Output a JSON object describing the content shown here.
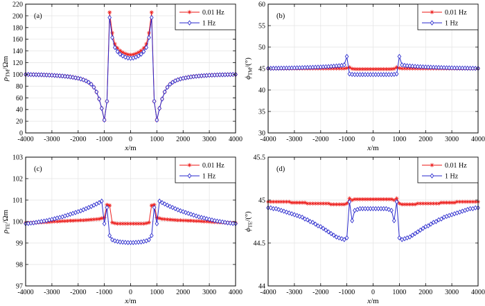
{
  "figure": {
    "background": "#ffffff",
    "axis_color": "#000000",
    "grid_color": "#e3e3e3",
    "series_colors": {
      "freq_001hz": "#ed2220",
      "freq_1hz": "#2727cc"
    },
    "legend_labels": [
      "0.01 Hz",
      "1 Hz"
    ]
  },
  "chart_data": [
    {
      "type": "line",
      "panel_label": "(a)",
      "xlabel": {
        "variable": "x",
        "unit": "/m"
      },
      "ylabel": {
        "variable": "ρ",
        "subscript": "TM",
        "unit": "/Ωm"
      },
      "xlim": [
        -4000,
        4000
      ],
      "ylim": [
        0,
        220
      ],
      "xticks": [
        -4000,
        -3000,
        -2000,
        -1000,
        0,
        1000,
        2000,
        3000,
        4000
      ],
      "yticks": [
        0,
        20,
        40,
        60,
        80,
        100,
        120,
        140,
        160,
        180,
        200,
        220
      ],
      "grid": true,
      "legend_position": "top-right",
      "x_start": -4000,
      "x_step": 100,
      "series": [
        {
          "name": "0.01 Hz",
          "marker": "asterisk",
          "color": "#ed2220",
          "values": [
            99.9,
            99.8,
            99.7,
            99.6,
            99.5,
            99.4,
            99.3,
            99.1,
            98.9,
            98.7,
            98.5,
            98.2,
            97.9,
            97.6,
            97.2,
            96.8,
            96.3,
            95.7,
            95,
            94.2,
            93.3,
            92.2,
            90.8,
            89,
            86.5,
            83,
            78,
            70,
            58,
            42,
            22,
            54,
            206,
            171,
            152,
            145,
            140.5,
            137.5,
            135.5,
            134,
            133.5,
            134,
            135.5,
            137.5,
            140.5,
            145,
            152,
            171,
            206,
            54,
            22,
            42,
            58,
            70,
            78,
            83,
            86.5,
            89,
            90.8,
            92.2,
            93.3,
            94.2,
            95,
            95.7,
            96.3,
            96.8,
            97.2,
            97.6,
            97.9,
            98.2,
            98.5,
            98.7,
            98.9,
            99.1,
            99.3,
            99.4,
            99.5,
            99.6,
            99.7,
            99.8,
            99.9
          ]
        },
        {
          "name": "1 Hz",
          "marker": "diamond",
          "color": "#2727cc",
          "values": [
            99.9,
            99.8,
            99.7,
            99.6,
            99.5,
            99.4,
            99.3,
            99.1,
            98.9,
            98.7,
            98.5,
            98.2,
            97.9,
            97.6,
            97.2,
            96.8,
            96.3,
            95.7,
            95,
            94.2,
            93.3,
            92.2,
            90.8,
            89,
            86.5,
            83,
            78,
            70,
            58,
            42,
            22,
            54,
            197,
            163,
            146,
            139,
            134.5,
            131.5,
            129.5,
            128,
            127.5,
            128,
            129.5,
            131.5,
            134.5,
            139,
            146,
            163,
            197,
            54,
            22,
            42,
            58,
            70,
            78,
            83,
            86.5,
            89,
            90.8,
            92.2,
            93.3,
            94.2,
            95,
            95.7,
            96.3,
            96.8,
            97.2,
            97.6,
            97.9,
            98.2,
            98.5,
            98.7,
            98.9,
            99.1,
            99.3,
            99.4,
            99.5,
            99.6,
            99.7,
            99.8,
            99.9
          ]
        }
      ]
    },
    {
      "type": "line",
      "panel_label": "(b)",
      "xlabel": {
        "variable": "x",
        "unit": "/m"
      },
      "ylabel": {
        "variable": "ϕ",
        "subscript": "TM",
        "unit": "/(°)"
      },
      "xlim": [
        -4000,
        4000
      ],
      "ylim": [
        30,
        60
      ],
      "xticks": [
        -4000,
        -3000,
        -2000,
        -1000,
        0,
        1000,
        2000,
        3000,
        4000
      ],
      "yticks": [
        30,
        35,
        40,
        45,
        50,
        55,
        60
      ],
      "grid": true,
      "legend_position": "top-right",
      "x_start": -4000,
      "x_step": 100,
      "series": [
        {
          "name": "0.01 Hz",
          "marker": "asterisk",
          "color": "#ed2220",
          "values": [
            45,
            45,
            45,
            45,
            45,
            45,
            45,
            45,
            45,
            45,
            45,
            45,
            45,
            45,
            45,
            45,
            45,
            45,
            45,
            45,
            45,
            45,
            45,
            45,
            45,
            45,
            45,
            45,
            45,
            45,
            45.1,
            45.3,
            44.95,
            44.88,
            44.87,
            44.87,
            44.87,
            44.87,
            44.87,
            44.87,
            44.87,
            44.87,
            44.87,
            44.87,
            44.87,
            44.87,
            44.87,
            44.88,
            44.95,
            45.3,
            45.1,
            45,
            45,
            45,
            45,
            45,
            45,
            45,
            45,
            45,
            45,
            45,
            45,
            45,
            45,
            45,
            45,
            45,
            45,
            45,
            45,
            45,
            45,
            45,
            45,
            45,
            45,
            45,
            45,
            45,
            45
          ]
        },
        {
          "name": "1 Hz",
          "marker": "diamond",
          "color": "#2727cc",
          "values": [
            45.05,
            45.05,
            45.06,
            45.07,
            45.08,
            45.09,
            45.1,
            45.11,
            45.12,
            45.13,
            45.15,
            45.16,
            45.18,
            45.2,
            45.22,
            45.24,
            45.26,
            45.28,
            45.3,
            45.32,
            45.35,
            45.38,
            45.42,
            45.45,
            45.5,
            45.55,
            45.6,
            45.65,
            45.72,
            45.85,
            47.8,
            43.75,
            43.65,
            43.6,
            43.6,
            43.6,
            43.6,
            43.6,
            43.6,
            43.6,
            43.6,
            43.6,
            43.6,
            43.6,
            43.6,
            43.6,
            43.6,
            43.6,
            43.65,
            43.75,
            47.8,
            45.85,
            45.72,
            45.65,
            45.6,
            45.55,
            45.5,
            45.45,
            45.42,
            45.38,
            45.35,
            45.32,
            45.3,
            45.28,
            45.26,
            45.24,
            45.22,
            45.2,
            45.18,
            45.16,
            45.15,
            45.13,
            45.12,
            45.11,
            45.1,
            45.09,
            45.08,
            45.07,
            45.06,
            45.05,
            45.05
          ]
        }
      ]
    },
    {
      "type": "line",
      "panel_label": "(c)",
      "xlabel": {
        "variable": "x",
        "unit": "/m"
      },
      "ylabel": {
        "variable": "ρ",
        "subscript": "TE",
        "unit": "/Ωm"
      },
      "xlim": [
        -4000,
        4000
      ],
      "ylim": [
        97,
        103
      ],
      "xticks": [
        -4000,
        -3000,
        -2000,
        -1000,
        0,
        1000,
        2000,
        3000,
        4000
      ],
      "yticks": [
        97,
        98,
        99,
        100,
        101,
        102,
        103
      ],
      "grid": true,
      "legend_position": "top-right",
      "x_start": -4000,
      "x_step": 100,
      "series": [
        {
          "name": "0.01 Hz",
          "marker": "asterisk",
          "color": "#ed2220",
          "values": [
            99.93,
            99.94,
            99.94,
            99.95,
            99.95,
            99.96,
            99.96,
            99.97,
            99.97,
            99.98,
            99.99,
            100,
            100,
            100.01,
            100.02,
            100.02,
            100.03,
            100.04,
            100.04,
            100.05,
            100.05,
            100.06,
            100.06,
            100.07,
            100.08,
            100.09,
            100.1,
            100.11,
            100.12,
            100.15,
            100.18,
            100.78,
            100.75,
            99.95,
            99.92,
            99.9,
            99.9,
            99.9,
            99.9,
            99.9,
            99.9,
            99.9,
            99.9,
            99.9,
            99.9,
            99.9,
            99.92,
            99.95,
            100.75,
            100.78,
            100.18,
            100.15,
            100.12,
            100.11,
            100.1,
            100.09,
            100.08,
            100.07,
            100.06,
            100.06,
            100.05,
            100.05,
            100.04,
            100.04,
            100.03,
            100.02,
            100.02,
            100.01,
            100,
            100,
            99.99,
            99.98,
            99.97,
            99.97,
            99.96,
            99.96,
            99.95,
            99.95,
            99.94,
            99.94,
            99.93
          ]
        },
        {
          "name": "1 Hz",
          "marker": "diamond",
          "color": "#2727cc",
          "values": [
            99.9,
            99.91,
            99.93,
            99.94,
            99.96,
            99.98,
            100,
            100.02,
            100.04,
            100.07,
            100.1,
            100.13,
            100.16,
            100.19,
            100.22,
            100.26,
            100.3,
            100.34,
            100.38,
            100.42,
            100.46,
            100.5,
            100.55,
            100.6,
            100.65,
            100.7,
            100.76,
            100.82,
            100.88,
            100.95,
            99.9,
            100.65,
            99.35,
            99.15,
            99.1,
            99.07,
            99.05,
            99.04,
            99.03,
            99.02,
            99.02,
            99.02,
            99.03,
            99.04,
            99.05,
            99.07,
            99.1,
            99.15,
            99.35,
            100.65,
            99.9,
            100.95,
            100.88,
            100.82,
            100.76,
            100.7,
            100.65,
            100.6,
            100.55,
            100.5,
            100.46,
            100.42,
            100.38,
            100.34,
            100.3,
            100.26,
            100.22,
            100.19,
            100.16,
            100.13,
            100.1,
            100.07,
            100.04,
            100.02,
            100,
            99.98,
            99.96,
            99.94,
            99.93,
            99.91,
            99.9
          ]
        }
      ]
    },
    {
      "type": "line",
      "panel_label": "(d)",
      "xlabel": {
        "variable": "x",
        "unit": "/m"
      },
      "ylabel": {
        "variable": "ϕ",
        "subscript": "TE",
        "unit": "/(°)"
      },
      "xlim": [
        -4000,
        4000
      ],
      "ylim": [
        44,
        45.5
      ],
      "xticks": [
        -4000,
        -3000,
        -2000,
        -1000,
        0,
        1000,
        2000,
        3000,
        4000
      ],
      "yticks": [
        44,
        44.5,
        45,
        45.5
      ],
      "grid": true,
      "legend_position": "top-right",
      "x_start": -4000,
      "x_step": 100,
      "series": [
        {
          "name": "0.01 Hz",
          "marker": "asterisk",
          "color": "#ed2220",
          "values": [
            44.98,
            44.98,
            44.98,
            44.98,
            44.98,
            44.98,
            44.98,
            44.98,
            44.98,
            44.97,
            44.97,
            44.97,
            44.97,
            44.97,
            44.97,
            44.96,
            44.96,
            44.96,
            44.96,
            44.96,
            44.96,
            44.96,
            44.96,
            44.96,
            44.95,
            44.95,
            44.95,
            44.95,
            44.95,
            44.95,
            44.96,
            45.02,
            45,
            45.01,
            45.01,
            45.01,
            45.01,
            45.01,
            45.01,
            45.01,
            45.01,
            45.01,
            45.01,
            45.01,
            45.01,
            45.01,
            45.01,
            45.01,
            45,
            45.02,
            44.96,
            44.95,
            44.95,
            44.95,
            44.95,
            44.95,
            44.95,
            44.96,
            44.96,
            44.96,
            44.96,
            44.96,
            44.96,
            44.96,
            44.96,
            44.96,
            44.97,
            44.97,
            44.97,
            44.97,
            44.97,
            44.97,
            44.98,
            44.98,
            44.98,
            44.98,
            44.98,
            44.98,
            44.98,
            44.98,
            44.98
          ]
        },
        {
          "name": "1 Hz",
          "marker": "diamond",
          "color": "#2727cc",
          "values": [
            44.91,
            44.91,
            44.9,
            44.9,
            44.89,
            44.88,
            44.87,
            44.86,
            44.85,
            44.84,
            44.83,
            44.82,
            44.81,
            44.8,
            44.78,
            44.77,
            44.75,
            44.74,
            44.72,
            44.7,
            44.69,
            44.67,
            44.65,
            44.63,
            44.61,
            44.59,
            44.57,
            44.56,
            44.55,
            44.54,
            44.56,
            44.98,
            44.76,
            44.88,
            44.89,
            44.9,
            44.9,
            44.9,
            44.9,
            44.9,
            44.9,
            44.9,
            44.9,
            44.9,
            44.9,
            44.9,
            44.89,
            44.88,
            44.76,
            44.98,
            44.56,
            44.54,
            44.55,
            44.56,
            44.57,
            44.59,
            44.61,
            44.63,
            44.65,
            44.67,
            44.69,
            44.7,
            44.72,
            44.74,
            44.75,
            44.77,
            44.78,
            44.8,
            44.81,
            44.82,
            44.83,
            44.84,
            44.85,
            44.86,
            44.87,
            44.88,
            44.89,
            44.9,
            44.9,
            44.91,
            44.91
          ]
        }
      ]
    }
  ]
}
